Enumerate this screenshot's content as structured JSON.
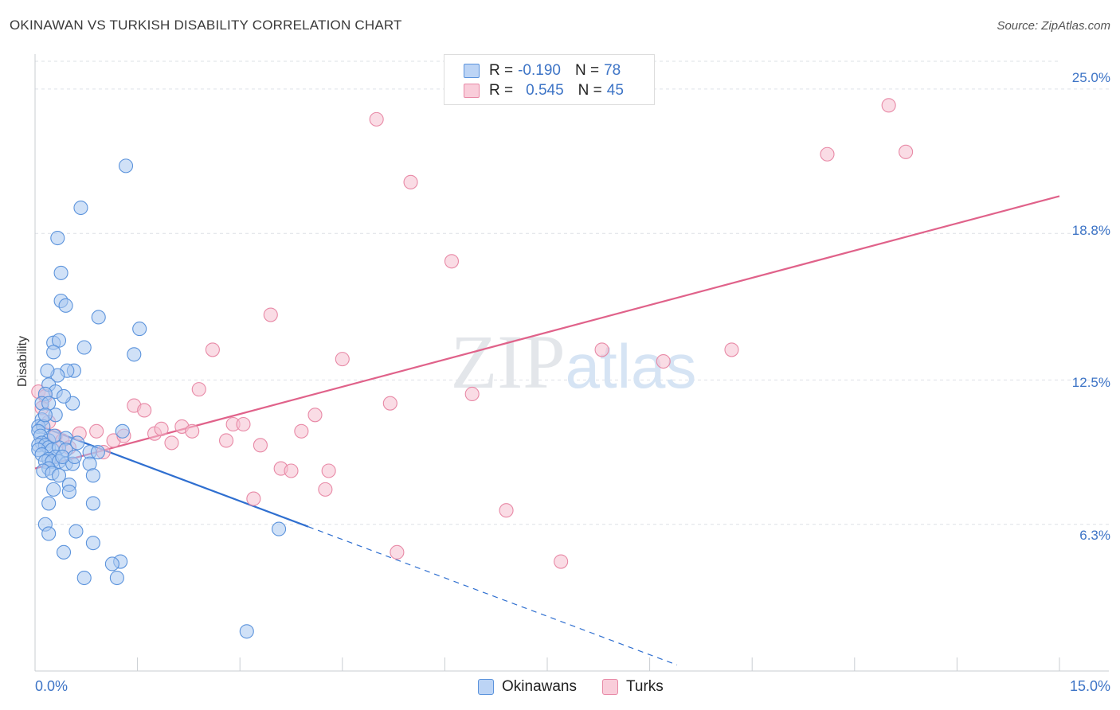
{
  "chart_data": {
    "type": "scatter",
    "title": "OKINAWAN VS TURKISH DISABILITY CORRELATION CHART",
    "source": "Source: ZipAtlas.com",
    "watermark": "ZIPatlas",
    "xlabel": "",
    "ylabel": "Disability",
    "xlim": [
      0,
      15
    ],
    "ylim": [
      0,
      26.5
    ],
    "x_tick_labels": [
      "0.0%",
      "15.0%"
    ],
    "y_ticks": [
      {
        "value": 6.3,
        "label": "6.3%"
      },
      {
        "value": 12.5,
        "label": "12.5%"
      },
      {
        "value": 18.8,
        "label": "18.8%"
      },
      {
        "value": 25.0,
        "label": "25.0%"
      }
    ],
    "legend": [
      {
        "series": "Okinawans",
        "r_label": "R =",
        "r": "-0.190",
        "n_label": "N =",
        "n": "78"
      },
      {
        "series": "Turks",
        "r_label": "R =",
        "r": "0.545",
        "n_label": "N =",
        "n": "45"
      }
    ],
    "series": [
      {
        "name": "Okinawans",
        "color": "#5b93dc",
        "fill": "#a9c8f0",
        "line_color": "#2f6fd0",
        "trend": {
          "x0": 0.0,
          "y0": 10.6,
          "x1": 4.0,
          "y1": 6.2,
          "dash_to_x": 9.4
        },
        "points": [
          [
            1.33,
            21.7
          ],
          [
            0.67,
            19.9
          ],
          [
            0.33,
            18.6
          ],
          [
            0.38,
            17.1
          ],
          [
            0.38,
            15.9
          ],
          [
            0.45,
            15.7
          ],
          [
            0.93,
            15.2
          ],
          [
            1.53,
            14.7
          ],
          [
            0.27,
            14.1
          ],
          [
            0.35,
            14.2
          ],
          [
            0.27,
            13.7
          ],
          [
            0.72,
            13.9
          ],
          [
            1.45,
            13.6
          ],
          [
            0.57,
            12.9
          ],
          [
            0.47,
            12.9
          ],
          [
            0.33,
            12.7
          ],
          [
            0.2,
            12.3
          ],
          [
            0.3,
            12.0
          ],
          [
            0.15,
            11.9
          ],
          [
            0.1,
            11.5
          ],
          [
            0.2,
            11.5
          ],
          [
            0.55,
            11.5
          ],
          [
            0.3,
            11.0
          ],
          [
            0.1,
            10.8
          ],
          [
            0.05,
            10.5
          ],
          [
            0.12,
            10.5
          ],
          [
            0.05,
            10.3
          ],
          [
            1.28,
            10.3
          ],
          [
            0.08,
            10.1
          ],
          [
            0.45,
            10.0
          ],
          [
            0.2,
            9.9
          ],
          [
            0.1,
            9.8
          ],
          [
            0.05,
            9.7
          ],
          [
            0.15,
            9.7
          ],
          [
            0.2,
            9.6
          ],
          [
            0.05,
            9.5
          ],
          [
            0.25,
            9.5
          ],
          [
            0.35,
            9.6
          ],
          [
            0.45,
            9.5
          ],
          [
            0.8,
            9.4
          ],
          [
            0.92,
            9.4
          ],
          [
            0.1,
            9.3
          ],
          [
            0.3,
            9.2
          ],
          [
            0.2,
            9.1
          ],
          [
            0.15,
            9.0
          ],
          [
            0.25,
            9.0
          ],
          [
            0.35,
            9.0
          ],
          [
            0.45,
            8.9
          ],
          [
            0.55,
            8.9
          ],
          [
            0.8,
            8.9
          ],
          [
            0.2,
            8.7
          ],
          [
            0.12,
            8.6
          ],
          [
            0.25,
            8.5
          ],
          [
            0.35,
            8.4
          ],
          [
            0.85,
            8.4
          ],
          [
            0.5,
            8.0
          ],
          [
            0.27,
            7.8
          ],
          [
            0.5,
            7.7
          ],
          [
            0.2,
            7.2
          ],
          [
            0.85,
            7.2
          ],
          [
            0.15,
            6.3
          ],
          [
            0.6,
            6.0
          ],
          [
            0.2,
            5.9
          ],
          [
            0.85,
            5.5
          ],
          [
            0.42,
            5.1
          ],
          [
            1.25,
            4.7
          ],
          [
            1.13,
            4.6
          ],
          [
            0.72,
            4.0
          ],
          [
            1.2,
            4.0
          ],
          [
            3.57,
            6.1
          ],
          [
            3.1,
            1.7
          ],
          [
            0.4,
            9.2
          ],
          [
            0.15,
            11.0
          ],
          [
            0.28,
            10.1
          ],
          [
            0.62,
            9.8
          ],
          [
            0.18,
            12.9
          ],
          [
            0.42,
            11.8
          ],
          [
            0.58,
            9.2
          ]
        ]
      },
      {
        "name": "Turks",
        "color": "#e889a6",
        "fill": "#f6bfd0",
        "line_color": "#e0628a",
        "trend": {
          "x0": 0.0,
          "y0": 8.7,
          "x1": 15.0,
          "y1": 20.4
        },
        "points": [
          [
            0.05,
            12.0
          ],
          [
            0.15,
            11.8
          ],
          [
            0.1,
            11.3
          ],
          [
            0.2,
            10.7
          ],
          [
            0.3,
            10.1
          ],
          [
            0.4,
            9.9
          ],
          [
            0.5,
            9.6
          ],
          [
            0.65,
            10.2
          ],
          [
            0.9,
            10.3
          ],
          [
            1.0,
            9.4
          ],
          [
            1.15,
            9.9
          ],
          [
            1.3,
            10.1
          ],
          [
            1.45,
            11.4
          ],
          [
            1.6,
            11.2
          ],
          [
            1.75,
            10.2
          ],
          [
            1.85,
            10.4
          ],
          [
            2.0,
            9.8
          ],
          [
            2.15,
            10.5
          ],
          [
            2.3,
            10.3
          ],
          [
            2.4,
            12.1
          ],
          [
            2.6,
            13.8
          ],
          [
            2.8,
            9.9
          ],
          [
            2.9,
            10.6
          ],
          [
            3.05,
            10.6
          ],
          [
            3.2,
            7.4
          ],
          [
            3.3,
            9.7
          ],
          [
            3.45,
            15.3
          ],
          [
            3.6,
            8.7
          ],
          [
            3.75,
            8.6
          ],
          [
            3.9,
            10.3
          ],
          [
            4.1,
            11.0
          ],
          [
            4.25,
            7.8
          ],
          [
            4.3,
            8.6
          ],
          [
            4.5,
            13.4
          ],
          [
            5.0,
            23.7
          ],
          [
            5.2,
            11.5
          ],
          [
            5.3,
            5.1
          ],
          [
            5.5,
            21.0
          ],
          [
            6.1,
            17.6
          ],
          [
            6.4,
            11.9
          ],
          [
            6.9,
            6.9
          ],
          [
            7.7,
            4.7
          ],
          [
            8.3,
            13.8
          ],
          [
            9.2,
            13.3
          ],
          [
            10.2,
            13.8
          ]
        ],
        "extra_points": [
          [
            11.6,
            22.2
          ],
          [
            12.5,
            24.3
          ],
          [
            12.75,
            22.3
          ]
        ]
      }
    ]
  }
}
